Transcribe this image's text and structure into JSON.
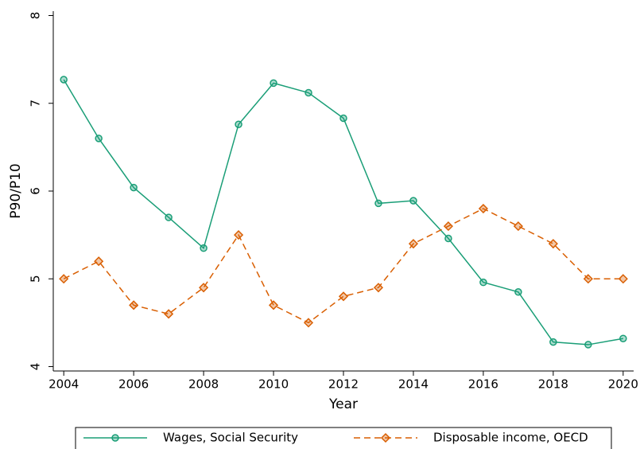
{
  "chart_data": {
    "type": "line",
    "x_label": "Year",
    "y_label": "P90/P10",
    "x": [
      2004,
      2005,
      2006,
      2007,
      2008,
      2009,
      2010,
      2011,
      2012,
      2013,
      2014,
      2015,
      2016,
      2017,
      2018,
      2019,
      2020
    ],
    "series": [
      {
        "name": "Wages, Social Security",
        "color": "#1a9e77",
        "marker": "circle",
        "dashed": false,
        "values": [
          7.27,
          6.6,
          6.04,
          5.7,
          5.35,
          6.76,
          7.23,
          7.12,
          6.83,
          5.86,
          5.89,
          5.46,
          4.96,
          4.85,
          4.28,
          4.25,
          4.32
        ]
      },
      {
        "name": "Disposable income, OECD",
        "color": "#d95f02",
        "marker": "diamond",
        "dashed": true,
        "values": [
          5.0,
          5.2,
          4.7,
          4.6,
          4.9,
          5.5,
          4.7,
          4.5,
          4.8,
          4.9,
          5.4,
          5.6,
          5.8,
          5.6,
          5.4,
          5.0,
          5.0
        ]
      }
    ],
    "xlim": [
      2003.7,
      2020.3
    ],
    "xticks": [
      2004,
      2006,
      2008,
      2010,
      2012,
      2014,
      2016,
      2018,
      2020
    ],
    "ylim": [
      3.95,
      8.05
    ],
    "yticks": [
      4,
      5,
      6,
      7,
      8
    ],
    "grid": false,
    "legend": "bottom"
  }
}
